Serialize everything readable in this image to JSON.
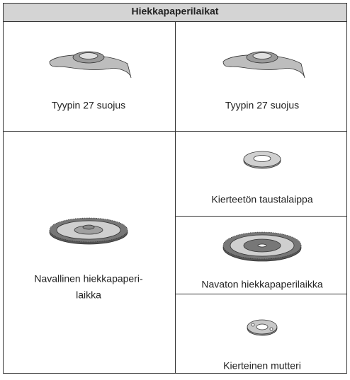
{
  "header": {
    "title": "Hiekkapaperilaikat"
  },
  "cells": [
    {
      "label": "Tyypin 27 suojus"
    },
    {
      "label": "Tyypin 27 suojus"
    },
    {
      "lines": [
        "Navallinen hiekkapaperi-",
        "laikka"
      ]
    },
    {
      "label": "Kierteetön taustalaippa"
    },
    {
      "label": "Navaton hiekkapaperilaikka"
    },
    {
      "label": "Kierteinen mutteri"
    }
  ]
}
